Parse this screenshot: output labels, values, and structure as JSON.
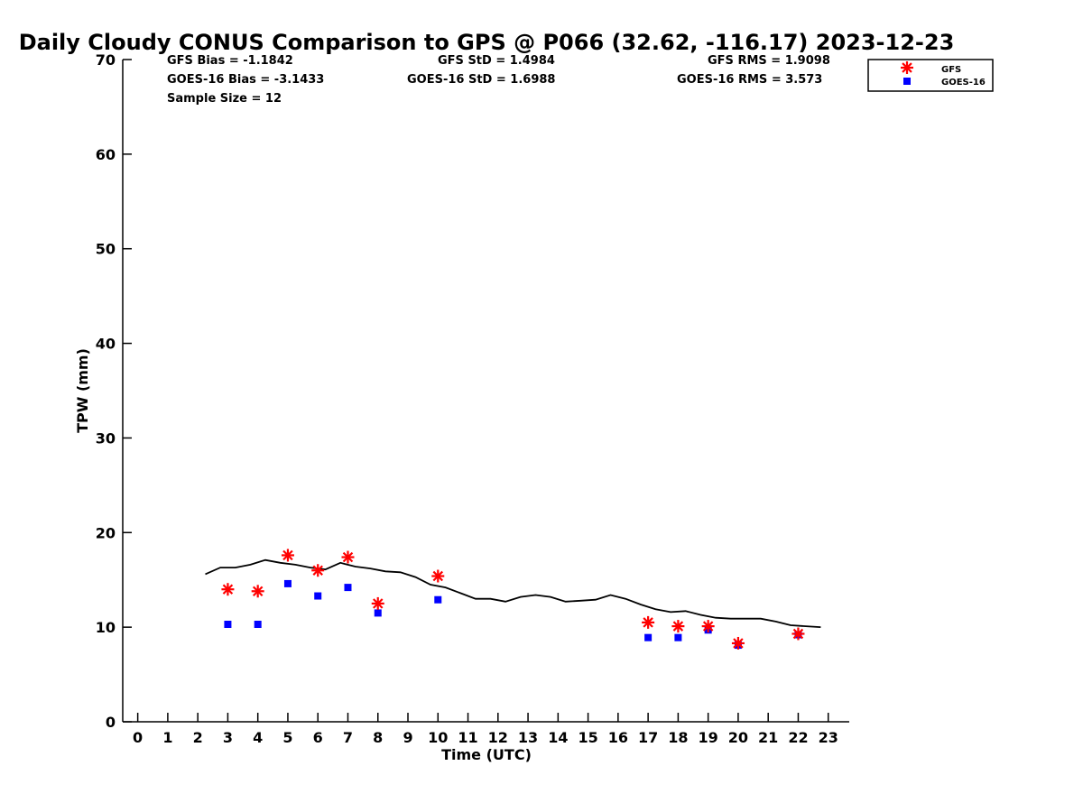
{
  "chart_data": {
    "type": "scatter",
    "title": "Daily Cloudy CONUS Comparison to GPS @ P066 (32.62, -116.17) 2023-12-23",
    "xlabel": "Time (UTC)",
    "ylabel": "TPW (mm)",
    "xlim": [
      -0.5,
      23.7
    ],
    "ylim": [
      0,
      70
    ],
    "xticks": [
      "0",
      "1",
      "2",
      "3",
      "4",
      "5",
      "6",
      "7",
      "8",
      "9",
      "10",
      "11",
      "12",
      "13",
      "14",
      "15",
      "16",
      "17",
      "18",
      "19",
      "20",
      "21",
      "22",
      "23"
    ],
    "yticks": [
      "0",
      "10",
      "20",
      "30",
      "40",
      "50",
      "60",
      "70"
    ],
    "grid": false,
    "legend_position": "top-right",
    "stats": [
      {
        "label": "GFS Bias = -1.1842"
      },
      {
        "label": "GFS StD = 1.4984"
      },
      {
        "label": "GFS RMS = 1.9098"
      },
      {
        "label": "GOES-16 Bias = -3.1433"
      },
      {
        "label": "GOES-16 StD = 1.6988"
      },
      {
        "label": "GOES-16 RMS = 3.573"
      },
      {
        "label": "Sample Size = 12"
      }
    ],
    "series": [
      {
        "name": "GFS",
        "marker": "asterisk",
        "color": "#ff0000",
        "points": [
          [
            3,
            14.0
          ],
          [
            4,
            13.8
          ],
          [
            5,
            17.6
          ],
          [
            6,
            16.0
          ],
          [
            7,
            17.4
          ],
          [
            8,
            12.5
          ],
          [
            10,
            15.4
          ],
          [
            17,
            10.5
          ],
          [
            18,
            10.1
          ],
          [
            19,
            10.1
          ],
          [
            20,
            8.3
          ],
          [
            22,
            9.3
          ]
        ]
      },
      {
        "name": "GOES-16",
        "marker": "square",
        "color": "#0000ff",
        "points": [
          [
            3,
            10.3
          ],
          [
            4,
            10.3
          ],
          [
            5,
            14.6
          ],
          [
            6,
            13.3
          ],
          [
            7,
            14.2
          ],
          [
            8,
            11.5
          ],
          [
            10,
            12.9
          ],
          [
            17,
            8.9
          ],
          [
            18,
            8.9
          ],
          [
            19,
            9.7
          ],
          [
            20,
            8.1
          ],
          [
            22,
            9.2
          ]
        ]
      },
      {
        "name": "GPS",
        "marker": "line",
        "color": "#000000",
        "points": [
          [
            2.25,
            15.6
          ],
          [
            2.75,
            16.3
          ],
          [
            3.25,
            16.3
          ],
          [
            3.75,
            16.6
          ],
          [
            4.25,
            17.1
          ],
          [
            4.75,
            16.8
          ],
          [
            5.25,
            16.6
          ],
          [
            5.75,
            16.3
          ],
          [
            6.25,
            16.1
          ],
          [
            6.75,
            16.8
          ],
          [
            7.25,
            16.4
          ],
          [
            7.75,
            16.2
          ],
          [
            8.25,
            15.9
          ],
          [
            8.75,
            15.8
          ],
          [
            9.25,
            15.3
          ],
          [
            9.75,
            14.5
          ],
          [
            10.25,
            14.2
          ],
          [
            10.75,
            13.6
          ],
          [
            11.25,
            13.0
          ],
          [
            11.75,
            13.0
          ],
          [
            12.25,
            12.7
          ],
          [
            12.75,
            13.2
          ],
          [
            13.25,
            13.4
          ],
          [
            13.75,
            13.2
          ],
          [
            14.25,
            12.7
          ],
          [
            14.75,
            12.8
          ],
          [
            15.25,
            12.9
          ],
          [
            15.75,
            13.4
          ],
          [
            16.25,
            13.0
          ],
          [
            16.75,
            12.4
          ],
          [
            17.25,
            11.9
          ],
          [
            17.75,
            11.6
          ],
          [
            18.25,
            11.7
          ],
          [
            18.75,
            11.3
          ],
          [
            19.25,
            11.0
          ],
          [
            19.75,
            10.9
          ],
          [
            20.25,
            10.9
          ],
          [
            20.75,
            10.9
          ],
          [
            21.25,
            10.6
          ],
          [
            21.75,
            10.2
          ],
          [
            22.25,
            10.1
          ],
          [
            22.75,
            10.0
          ]
        ]
      }
    ]
  }
}
